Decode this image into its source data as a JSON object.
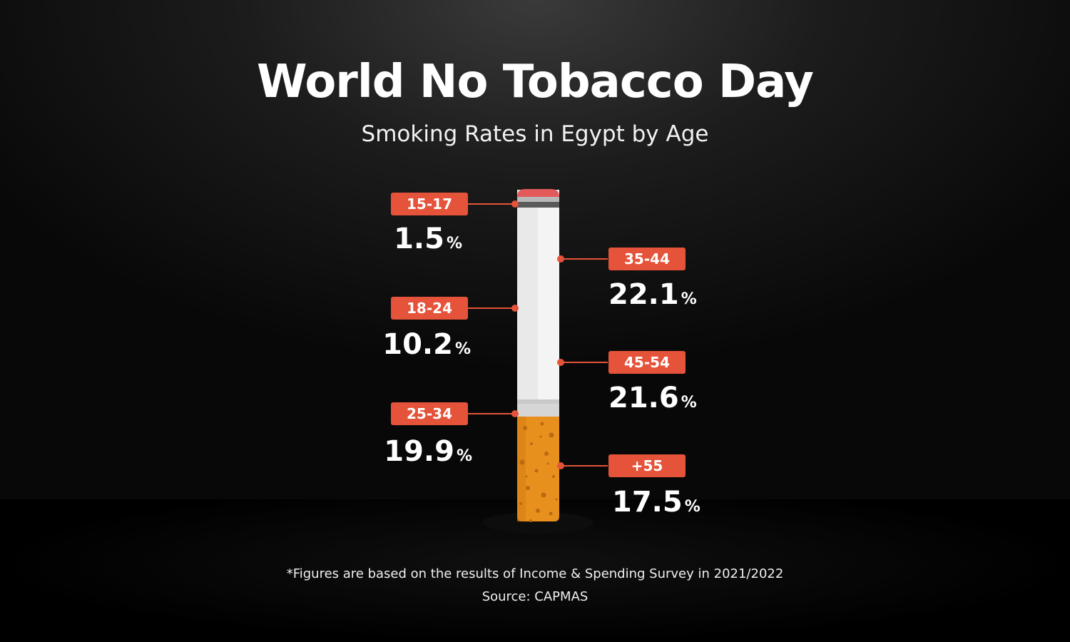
{
  "title": "World No Tobacco Day",
  "subtitle": "Smoking Rates in Egypt by Age",
  "footnote": "*Figures are based on the results of Income & Spending Survey in 2021/2022",
  "source": "Source: CAPMAS",
  "colors": {
    "badge": "#e4533a",
    "filter": "#e8901e",
    "paper": "#efefef",
    "background": "#1c1c1c"
  },
  "chart_data": {
    "type": "bar",
    "title": "World No Tobacco Day",
    "subtitle": "Smoking Rates in Egypt by Age",
    "unit": "%",
    "categories": [
      "15-17",
      "18-24",
      "25-34",
      "35-44",
      "45-54",
      "+55"
    ],
    "values": [
      1.5,
      10.2,
      19.9,
      22.1,
      21.6,
      17.5
    ],
    "labels": [
      {
        "category": "15-17",
        "value": "1.5",
        "pct": "%"
      },
      {
        "category": "18-24",
        "value": "10.2",
        "pct": "%"
      },
      {
        "category": "25-34",
        "value": "19.9",
        "pct": "%"
      },
      {
        "category": "35-44",
        "value": "22.1",
        "pct": "%"
      },
      {
        "category": "45-54",
        "value": "21.6",
        "pct": "%"
      },
      {
        "category": "+55",
        "value": "17.5",
        "pct": "%"
      }
    ]
  }
}
